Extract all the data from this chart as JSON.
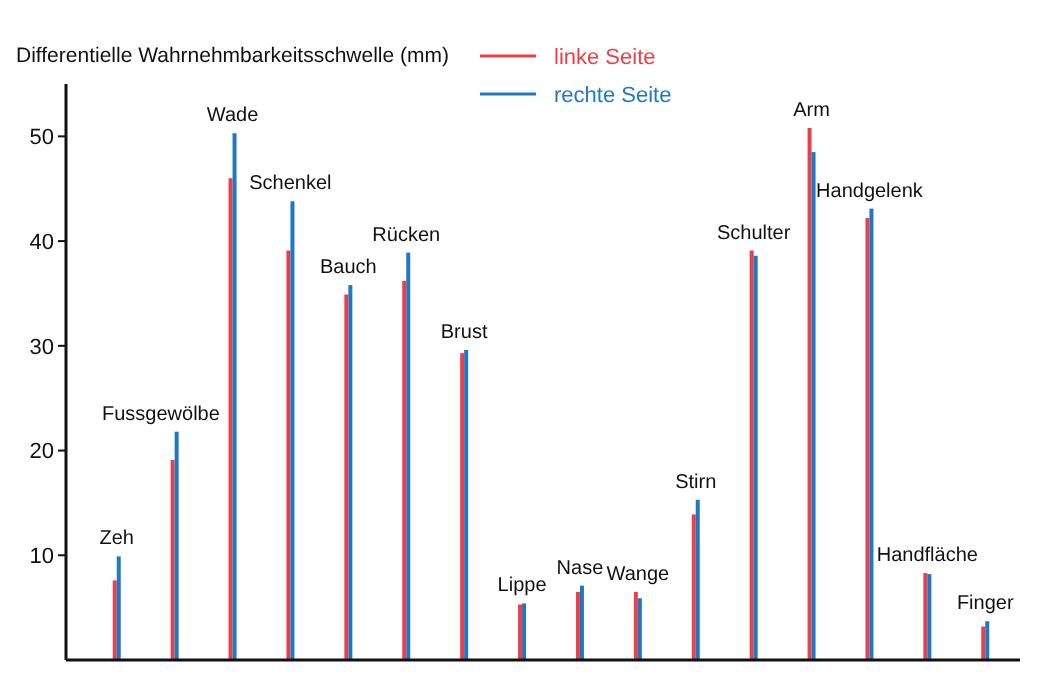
{
  "chart_data": {
    "type": "bar",
    "ylabel": "Differentielle Wahrnehmbarkeitsschwelle (mm)",
    "categories": [
      "Zeh",
      "Fussgewölbe",
      "Wade",
      "Schenkel",
      "Bauch",
      "Rücken",
      "Brust",
      "Lippe",
      "Nase",
      "Wange",
      "Stirn",
      "Schulter",
      "Arm",
      "Handgelenk",
      "Handfläche",
      "Finger"
    ],
    "series": [
      {
        "name": "linke Seite",
        "color": "#e8414b",
        "values": [
          7.6,
          19.1,
          46,
          39.1,
          34.9,
          36.2,
          29.3,
          5.3,
          6.5,
          6.5,
          13.9,
          39.1,
          50.8,
          42.2,
          8.3,
          3.2
        ]
      },
      {
        "name": "rechte Seite",
        "color": "#1f78c1",
        "values": [
          9.9,
          21.8,
          50.3,
          43.8,
          35.8,
          38.9,
          29.6,
          5.4,
          7.1,
          5.9,
          15.3,
          38.6,
          48.5,
          43.1,
          8.2,
          3.7
        ]
      }
    ],
    "ylim": [
      0,
      55
    ],
    "yticks": [
      10,
      20,
      30,
      40,
      50
    ],
    "grid": false,
    "legend": "top"
  }
}
